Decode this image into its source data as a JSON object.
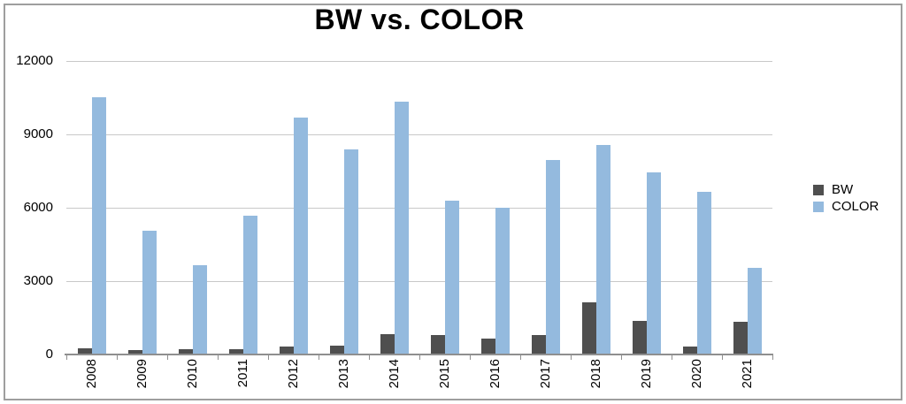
{
  "title": "BW vs. COLOR",
  "chart_data": {
    "type": "bar",
    "title": "BW vs. COLOR",
    "categories": [
      "2008",
      "2009",
      "2010",
      "2011",
      "2012",
      "2013",
      "2014",
      "2015",
      "2016",
      "2017",
      "2018",
      "2019",
      "2020",
      "2021"
    ],
    "series": [
      {
        "name": "BW",
        "color": "#4f4f4f",
        "values": [
          260,
          190,
          230,
          200,
          330,
          360,
          820,
          790,
          650,
          780,
          2150,
          1390,
          340,
          1330
        ]
      },
      {
        "name": "COLOR",
        "color": "#94bade",
        "values": [
          10500,
          5060,
          3640,
          5670,
          9690,
          8370,
          10340,
          6280,
          6000,
          7940,
          8550,
          7450,
          6640,
          3560
        ]
      }
    ],
    "ylim": [
      0,
      12000
    ],
    "yticks": [
      0,
      3000,
      6000,
      9000,
      12000
    ],
    "grid": true,
    "legend_position": "right",
    "xlabel": "",
    "ylabel": ""
  },
  "colors": {
    "grid": "#c9c9c9",
    "axis": "#8f8f8f",
    "frame_border": "#9e9e9e",
    "background": "#ffffff",
    "text": "#000000"
  }
}
